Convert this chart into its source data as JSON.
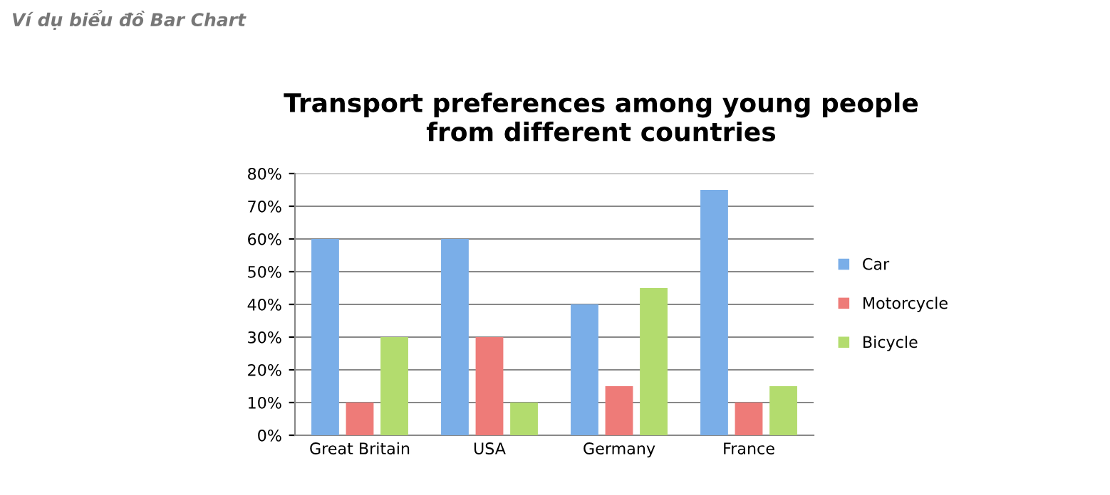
{
  "chart_data": {
    "type": "bar",
    "title": "Transport preferences among young people\nfrom different countries",
    "annotations": [
      "Ví dụ biểu đồ Bar Chart"
    ],
    "categories": [
      "Great Britain",
      "USA",
      "Germany",
      "France"
    ],
    "series": [
      {
        "name": "Car",
        "color": "#7aaee8",
        "values": [
          60,
          60,
          40,
          75
        ]
      },
      {
        "name": "Motorcycle",
        "color": "#ee7b78",
        "values": [
          10,
          30,
          15,
          10
        ]
      },
      {
        "name": "Bicycle",
        "color": "#b3dc6e",
        "values": [
          30,
          10,
          45,
          15
        ]
      }
    ],
    "ylim": [
      0,
      80
    ],
    "yticks": [
      {
        "value": 0,
        "label": "0%"
      },
      {
        "value": 10,
        "label": "10%"
      },
      {
        "value": 20,
        "label": "20%"
      },
      {
        "value": 30,
        "label": "30%"
      },
      {
        "value": 40,
        "label": "40%"
      },
      {
        "value": 50,
        "label": "50%"
      },
      {
        "value": 60,
        "label": "60%"
      },
      {
        "value": 70,
        "label": "70%"
      },
      {
        "value": 80,
        "label": "80%"
      }
    ],
    "grid": "y",
    "legend": "right"
  }
}
